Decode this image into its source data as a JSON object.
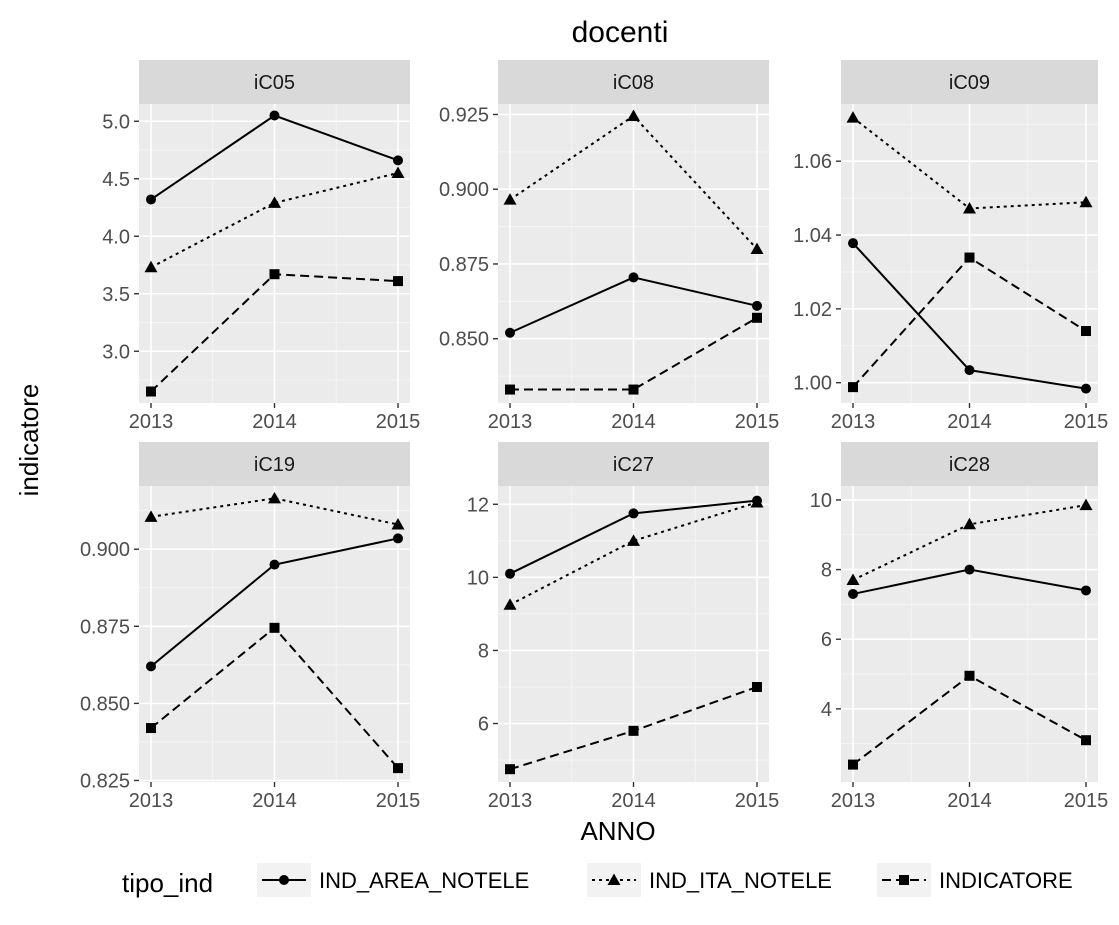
{
  "chart_data": {
    "type": "line",
    "title": "docenti",
    "xlabel": "ANNO",
    "ylabel": "indicatore",
    "legend": {
      "title": "tipo_ind",
      "position": "bottom",
      "entries": [
        {
          "name": "IND_AREA_NOTELE",
          "marker": "circle",
          "line": "solid"
        },
        {
          "name": "IND_ITA_NOTELE",
          "marker": "triangle",
          "line": "dotted"
        },
        {
          "name": "INDICATORE",
          "marker": "square",
          "line": "dashed"
        }
      ]
    },
    "x": [
      2013,
      2014,
      2015
    ],
    "x_tick_labels": [
      "2013",
      "2014",
      "2015"
    ],
    "grid": true,
    "panels": [
      {
        "label": "iC05",
        "ylim": [
          2.55,
          5.15
        ],
        "y_ticks": [
          3.0,
          3.5,
          4.0,
          4.5,
          5.0
        ],
        "y_tick_labels": [
          "3.0",
          "3.5",
          "4.0",
          "4.5",
          "5.0"
        ],
        "series": [
          {
            "name": "IND_AREA_NOTELE",
            "values": [
              4.32,
              5.05,
              4.66
            ]
          },
          {
            "name": "IND_ITA_NOTELE",
            "values": [
              3.73,
              4.29,
              4.55
            ]
          },
          {
            "name": "INDICATORE",
            "values": [
              2.65,
              3.67,
              3.61
            ]
          }
        ]
      },
      {
        "label": "iC08",
        "ylim": [
          0.8285,
          0.9285
        ],
        "y_ticks": [
          0.85,
          0.875,
          0.9,
          0.925
        ],
        "y_tick_labels": [
          "0.850",
          "0.875",
          "0.900",
          "0.925"
        ],
        "series": [
          {
            "name": "IND_AREA_NOTELE",
            "values": [
              0.852,
              0.8705,
              0.861
            ]
          },
          {
            "name": "IND_ITA_NOTELE",
            "values": [
              0.8965,
              0.9245,
              0.88
            ]
          },
          {
            "name": "INDICATORE",
            "values": [
              0.833,
              0.833,
              0.857
            ]
          }
        ]
      },
      {
        "label": "iC09",
        "ylim": [
          0.9945,
          1.0755
        ],
        "y_ticks": [
          1.0,
          1.02,
          1.04,
          1.06
        ],
        "y_tick_labels": [
          "1.00",
          "1.02",
          "1.04",
          "1.06"
        ],
        "series": [
          {
            "name": "IND_AREA_NOTELE",
            "values": [
              1.0378,
              1.0034,
              0.9984
            ]
          },
          {
            "name": "IND_ITA_NOTELE",
            "values": [
              1.0718,
              1.0472,
              1.0489
            ]
          },
          {
            "name": "INDICATORE",
            "values": [
              0.9988,
              1.0339,
              1.014
            ]
          }
        ]
      },
      {
        "label": "iC19",
        "ylim": [
          0.8245,
          0.9205
        ],
        "y_ticks": [
          0.825,
          0.85,
          0.875,
          0.9
        ],
        "y_tick_labels": [
          "0.825",
          "0.850",
          "0.875",
          "0.900"
        ],
        "series": [
          {
            "name": "IND_AREA_NOTELE",
            "values": [
              0.862,
              0.895,
              0.9035
            ]
          },
          {
            "name": "IND_ITA_NOTELE",
            "values": [
              0.9105,
              0.9165,
              0.908
            ]
          },
          {
            "name": "INDICATORE",
            "values": [
              0.842,
              0.8745,
              0.829
            ]
          }
        ]
      },
      {
        "label": "iC27",
        "ylim": [
          4.4,
          12.5
        ],
        "y_ticks": [
          6,
          8,
          10,
          12
        ],
        "y_tick_labels": [
          "6",
          "8",
          "10",
          "12"
        ],
        "series": [
          {
            "name": "IND_AREA_NOTELE",
            "values": [
              10.1,
              11.75,
              12.1
            ]
          },
          {
            "name": "IND_ITA_NOTELE",
            "values": [
              9.25,
              11.0,
              12.05
            ]
          },
          {
            "name": "INDICATORE",
            "values": [
              4.75,
              5.8,
              7.0
            ]
          }
        ]
      },
      {
        "label": "iC28",
        "ylim": [
          1.9,
          10.4
        ],
        "y_ticks": [
          4,
          6,
          8,
          10
        ],
        "y_tick_labels": [
          "4",
          "6",
          "8",
          "10"
        ],
        "series": [
          {
            "name": "IND_AREA_NOTELE",
            "values": [
              7.3,
              8.0,
              7.4
            ]
          },
          {
            "name": "IND_ITA_NOTELE",
            "values": [
              7.7,
              9.3,
              9.85
            ]
          },
          {
            "name": "INDICATORE",
            "values": [
              2.4,
              4.95,
              3.1
            ]
          }
        ]
      }
    ]
  }
}
